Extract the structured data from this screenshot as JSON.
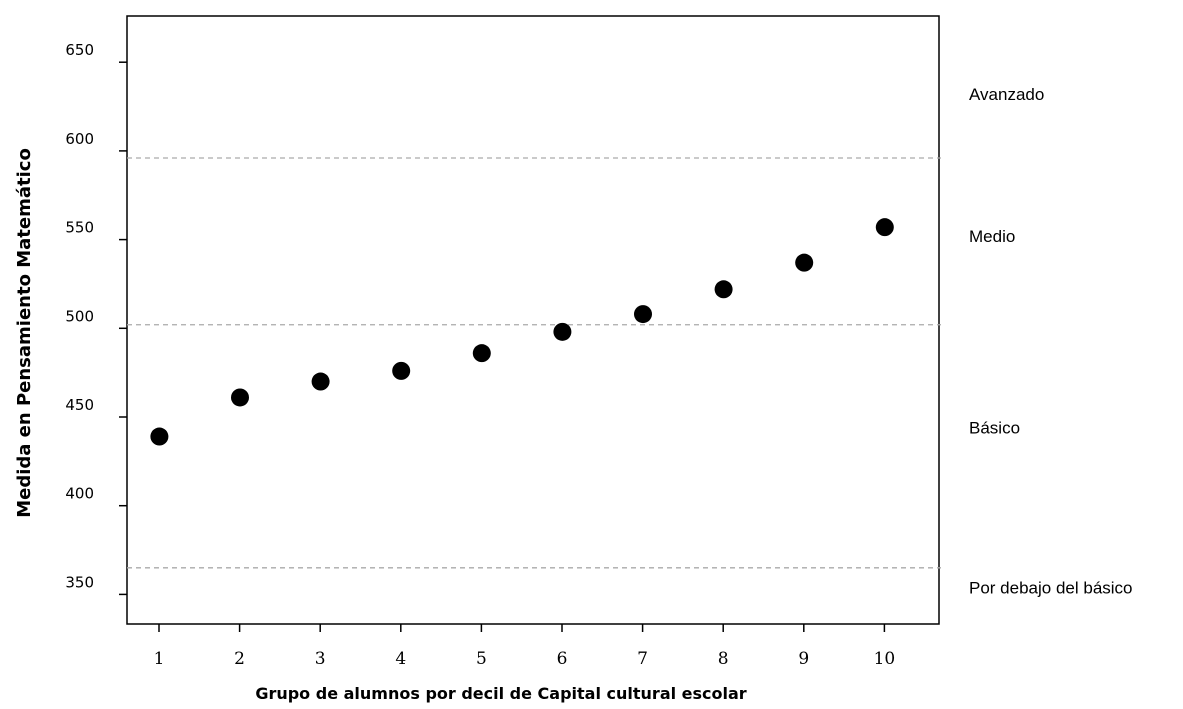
{
  "chart_data": {
    "type": "scatter",
    "xlabel": "Grupo de alumnos por decil de Capital cultural escolar",
    "ylabel": "Medida en Pensamiento Matemático",
    "categories": [
      "1",
      "2",
      "3",
      "4",
      "5",
      "6",
      "7",
      "8",
      "9",
      "10"
    ],
    "x": [
      1,
      2,
      3,
      4,
      5,
      6,
      7,
      8,
      9,
      10
    ],
    "values": [
      439,
      461,
      470,
      476,
      486,
      498,
      508,
      522,
      537,
      557
    ],
    "yticks": [
      350,
      400,
      450,
      500,
      550,
      600,
      650
    ],
    "ylim": [
      335,
      675
    ],
    "xlim": [
      0.6,
      10.6
    ],
    "grid": false,
    "marker_color": "#000000",
    "cutoffs": [
      {
        "value": 365,
        "style": "dashed",
        "color": "#aaaaaa"
      },
      {
        "value": 502,
        "style": "dashed",
        "color": "#aaaaaa"
      },
      {
        "value": 596,
        "style": "dashed",
        "color": "#aaaaaa"
      }
    ],
    "bands": [
      {
        "label": "Avanzado",
        "y": 632
      },
      {
        "label": "Medio",
        "y": 552
      },
      {
        "label": "Básico",
        "y": 444
      },
      {
        "label": "Por debajo del básico",
        "y": 354
      }
    ]
  }
}
